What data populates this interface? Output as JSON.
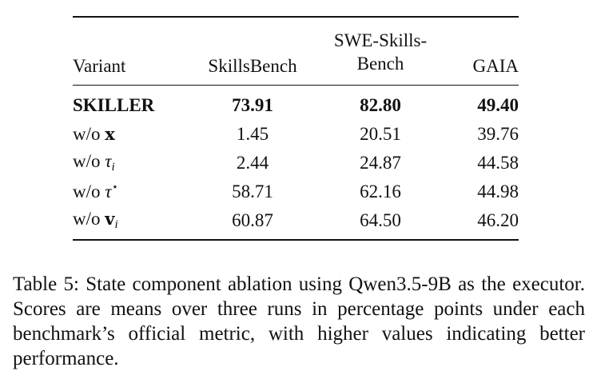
{
  "table": {
    "headers": {
      "variant": "Variant",
      "skillsbench": "SkillsBench",
      "swe_line1": "SWE-Skills-",
      "swe_line2": "Bench",
      "gaia": "GAIA"
    },
    "rows": [
      {
        "prefix": "SKILLER",
        "symbol": "",
        "sub": "",
        "sup": "",
        "skillsbench": "73.91",
        "swe": "82.80",
        "gaia": "49.40"
      },
      {
        "prefix": "w/o ",
        "symbol": "x",
        "sub": "",
        "sup": "",
        "skillsbench": "1.45",
        "swe": "20.51",
        "gaia": "39.76"
      },
      {
        "prefix": "w/o ",
        "symbol": "τ",
        "sub": "i",
        "sup": "",
        "skillsbench": "2.44",
        "swe": "24.87",
        "gaia": "44.58"
      },
      {
        "prefix": "w/o ",
        "symbol": "τ",
        "sub": "",
        "sup": "⋆",
        "skillsbench": "58.71",
        "swe": "62.16",
        "gaia": "44.98"
      },
      {
        "prefix": "w/o ",
        "symbol": "v",
        "sub": "i",
        "sup": "",
        "skillsbench": "60.87",
        "swe": "64.50",
        "gaia": "46.20"
      }
    ]
  },
  "caption": {
    "text": "Table 5: State component ablation using Qwen3.5-9B as the executor. Scores are means over three runs in percentage points under each benchmark’s official metric, with higher values indicating better performance."
  }
}
